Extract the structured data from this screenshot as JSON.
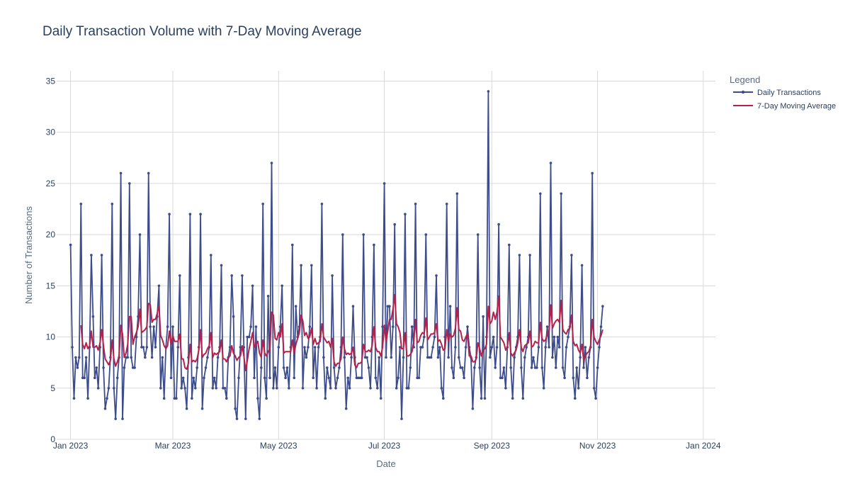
{
  "chart_data": {
    "type": "line",
    "title": "Daily Transaction Volume with 7-Day Moving Average",
    "xlabel": "Date",
    "ylabel": "Number of Transactions",
    "xlim": [
      "2022-12-24",
      "2024-01-08"
    ],
    "ylim": [
      0,
      36
    ],
    "x_ticks": [
      "2023-01-01",
      "2023-03-01",
      "2023-05-01",
      "2023-07-01",
      "2023-09-01",
      "2023-11-01",
      "2024-01-01"
    ],
    "x_tick_labels": [
      "Jan 2023",
      "Mar 2023",
      "May 2023",
      "Jul 2023",
      "Sep 2023",
      "Nov 2023",
      "Jan 2024"
    ],
    "y_ticks": [
      0,
      5,
      10,
      15,
      20,
      25,
      30,
      35
    ],
    "grid": true,
    "legend": {
      "title": "Legend",
      "placement": "right"
    },
    "x_start": "2023-01-01",
    "series": [
      {
        "name": "Daily Transactions",
        "color": "#3d4c8a",
        "marker": "dot",
        "values": [
          19,
          9,
          4,
          8,
          7,
          8,
          23,
          6,
          6,
          8,
          4,
          9,
          18,
          12,
          6,
          7,
          5,
          9,
          18,
          7,
          3,
          4,
          5,
          8,
          23,
          5,
          2,
          6,
          8,
          26,
          2,
          7,
          8,
          8,
          25,
          8,
          7,
          7,
          10,
          12,
          20,
          9,
          9,
          8,
          9,
          26,
          11,
          8,
          11,
          9,
          12,
          15,
          5,
          8,
          4,
          9,
          11,
          22,
          6,
          11,
          4,
          4,
          9,
          16,
          5,
          6,
          5,
          3,
          8,
          22,
          4,
          6,
          5,
          7,
          9,
          22,
          3,
          6,
          7,
          8,
          9,
          18,
          5,
          6,
          5,
          8,
          9,
          17,
          5,
          5,
          4,
          8,
          9,
          16,
          12,
          3,
          2,
          6,
          9,
          16,
          9,
          2,
          10,
          10,
          11,
          15,
          6,
          11,
          4,
          2,
          7,
          23,
          6,
          4,
          14,
          6,
          27,
          5,
          7,
          5,
          9,
          11,
          15,
          7,
          6,
          7,
          5,
          9,
          19,
          6,
          13,
          10,
          11,
          17,
          5,
          9,
          8,
          9,
          11,
          17,
          6,
          9,
          5,
          9,
          10,
          23,
          8,
          4,
          7,
          6,
          5,
          16,
          7,
          5,
          6,
          7,
          9,
          20,
          8,
          3,
          6,
          5,
          8,
          13,
          8,
          6,
          6,
          6,
          6,
          20,
          8,
          8,
          7,
          5,
          10,
          19,
          6,
          5,
          8,
          4,
          11,
          25,
          8,
          13,
          13,
          8,
          11,
          21,
          5,
          6,
          9,
          2,
          8,
          22,
          5,
          5,
          7,
          11,
          9,
          23,
          6,
          6,
          9,
          9,
          10,
          20,
          8,
          8,
          8,
          9,
          10,
          16,
          8,
          9,
          5,
          4,
          10,
          23,
          8,
          13,
          7,
          6,
          9,
          24,
          8,
          7,
          7,
          6,
          9,
          11,
          9,
          8,
          3,
          7,
          8,
          20,
          7,
          4,
          12,
          4,
          10,
          34,
          8,
          9,
          10,
          7,
          9,
          21,
          6,
          6,
          7,
          5,
          9,
          19,
          7,
          4,
          8,
          9,
          10,
          18,
          7,
          4,
          8,
          9,
          10,
          18,
          7,
          8,
          7,
          7,
          9,
          24,
          7,
          5,
          9,
          11,
          9,
          27,
          8,
          10,
          7,
          10,
          9,
          24,
          7,
          6,
          9,
          10,
          11,
          18,
          6,
          4,
          7,
          5,
          8,
          17,
          7,
          9,
          6,
          8,
          9,
          26,
          5,
          4,
          7,
          9,
          11,
          13
        ]
      },
      {
        "name": "7-Day Moving Average",
        "color": "#b5214a"
      }
    ]
  }
}
